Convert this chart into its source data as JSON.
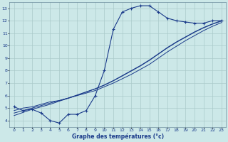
{
  "x": [
    0,
    1,
    2,
    3,
    4,
    5,
    6,
    7,
    8,
    9,
    10,
    11,
    12,
    13,
    14,
    15,
    16,
    17,
    18,
    19,
    20,
    21,
    22,
    23
  ],
  "y_main": [
    5.1,
    4.8,
    4.9,
    4.6,
    4.0,
    3.8,
    4.5,
    4.5,
    4.8,
    6.0,
    8.0,
    11.3,
    12.7,
    13.0,
    13.2,
    13.2,
    12.7,
    12.2,
    12.0,
    11.9,
    11.8,
    11.8,
    12.0,
    12.0
  ],
  "y_line1": [
    4.8,
    5.0,
    5.1,
    5.3,
    5.5,
    5.6,
    5.8,
    6.0,
    6.2,
    6.4,
    6.7,
    7.0,
    7.35,
    7.7,
    8.1,
    8.5,
    9.0,
    9.5,
    9.95,
    10.4,
    10.8,
    11.2,
    11.55,
    11.85
  ],
  "y_line2": [
    4.6,
    4.8,
    5.0,
    5.2,
    5.4,
    5.6,
    5.8,
    6.05,
    6.3,
    6.55,
    6.85,
    7.2,
    7.6,
    8.0,
    8.4,
    8.85,
    9.35,
    9.85,
    10.3,
    10.7,
    11.1,
    11.45,
    11.75,
    12.0
  ],
  "y_line3": [
    4.4,
    4.65,
    4.9,
    5.1,
    5.3,
    5.55,
    5.78,
    6.02,
    6.28,
    6.53,
    6.83,
    7.18,
    7.57,
    7.97,
    8.37,
    8.82,
    9.32,
    9.82,
    10.27,
    10.67,
    11.07,
    11.42,
    11.72,
    11.97
  ],
  "bg_color": "#cce8e8",
  "line_color": "#1a3a8a",
  "grid_color": "#aacaca",
  "xlabel": "Graphe des températures (°c)",
  "ylim": [
    3.5,
    13.5
  ],
  "xlim": [
    -0.5,
    23.5
  ],
  "yticks": [
    4,
    5,
    6,
    7,
    8,
    9,
    10,
    11,
    12,
    13
  ],
  "xticks": [
    0,
    1,
    2,
    3,
    4,
    5,
    6,
    7,
    8,
    9,
    10,
    11,
    12,
    13,
    14,
    15,
    16,
    17,
    18,
    19,
    20,
    21,
    22,
    23
  ]
}
